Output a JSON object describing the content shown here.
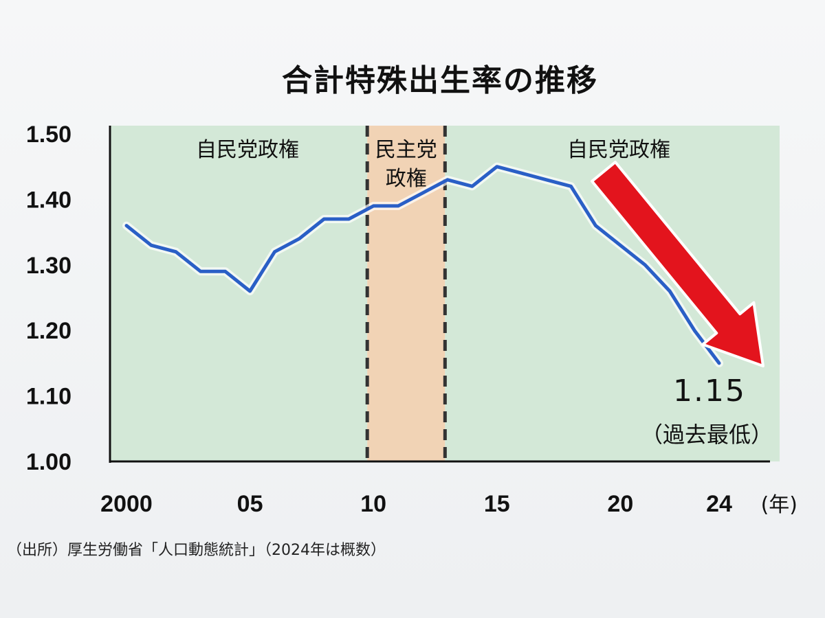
{
  "chart_data": {
    "type": "line",
    "title": "合計特殊出生率の推移",
    "x_unit": "(年)",
    "x_ticks": [
      {
        "value": 2000,
        "label": "2000"
      },
      {
        "value": 2005,
        "label": "05"
      },
      {
        "value": 2010,
        "label": "10"
      },
      {
        "value": 2015,
        "label": "15"
      },
      {
        "value": 2020,
        "label": "20"
      },
      {
        "value": 2024,
        "label": "24"
      }
    ],
    "y_ticks": [
      {
        "value": 1.0,
        "label": "1.00"
      },
      {
        "value": 1.1,
        "label": "1.10"
      },
      {
        "value": 1.2,
        "label": "1.20"
      },
      {
        "value": 1.3,
        "label": "1.30"
      },
      {
        "value": 1.4,
        "label": "1.40"
      },
      {
        "value": 1.5,
        "label": "1.50"
      }
    ],
    "xlim": [
      2000,
      2024
    ],
    "ylim": [
      1.0,
      1.5
    ],
    "grid": false,
    "series": [
      {
        "color": "#2a5fc6",
        "x": [
          2000,
          2001,
          2002,
          2003,
          2004,
          2005,
          2006,
          2007,
          2008,
          2009,
          2010,
          2011,
          2012,
          2013,
          2014,
          2015,
          2016,
          2017,
          2018,
          2019,
          2020,
          2021,
          2022,
          2023,
          2024
        ],
        "values": [
          1.36,
          1.33,
          1.32,
          1.29,
          1.29,
          1.26,
          1.32,
          1.34,
          1.37,
          1.37,
          1.39,
          1.39,
          1.41,
          1.43,
          1.42,
          1.45,
          1.44,
          1.43,
          1.42,
          1.36,
          1.33,
          1.3,
          1.26,
          1.2,
          1.15
        ]
      }
    ],
    "periods": [
      {
        "label_lines": [
          "自民党政権"
        ],
        "start": 2000,
        "end": 2009.75,
        "color": "#d3e8d7"
      },
      {
        "label_lines": [
          "民主党",
          "政権"
        ],
        "start": 2009.75,
        "end": 2012.9,
        "color": "#f1d3b5"
      },
      {
        "label_lines": [
          "自民党政権"
        ],
        "start": 2012.9,
        "end": 2024.5,
        "color": "#d3e8d7"
      }
    ],
    "annotation": {
      "value_text": "1.15",
      "note_text": "（過去最低）",
      "arrow_color": "#e3141d"
    },
    "source": "（出所）厚生労働省「人口動態統計」（2024年は概数）"
  }
}
